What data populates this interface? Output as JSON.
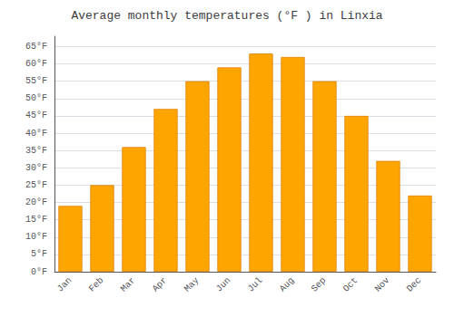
{
  "chart_data": {
    "type": "bar",
    "title": "Average monthly temperatures (°F ) in Linxia",
    "categories": [
      "Jan",
      "Feb",
      "Mar",
      "Apr",
      "May",
      "Jun",
      "Jul",
      "Aug",
      "Sep",
      "Oct",
      "Nov",
      "Dec"
    ],
    "values": [
      19,
      25,
      36,
      47,
      55,
      59,
      63,
      62,
      55,
      45,
      32,
      22
    ],
    "color": "#FFA500",
    "ylim": [
      0,
      68
    ],
    "yticks": [
      {
        "value": 0,
        "label": "0°F"
      },
      {
        "value": 5,
        "label": "5°F"
      },
      {
        "value": 10,
        "label": "10°F"
      },
      {
        "value": 15,
        "label": "15°F"
      },
      {
        "value": 20,
        "label": "20°F"
      },
      {
        "value": 25,
        "label": "25°F"
      },
      {
        "value": 30,
        "label": "30°F"
      },
      {
        "value": 35,
        "label": "35°F"
      },
      {
        "value": 40,
        "label": "40°F"
      },
      {
        "value": 45,
        "label": "45°F"
      },
      {
        "value": 50,
        "label": "50°F"
      },
      {
        "value": 55,
        "label": "55°F"
      },
      {
        "value": 60,
        "label": "60°F"
      },
      {
        "value": 65,
        "label": "65°F"
      }
    ],
    "grid": true
  }
}
